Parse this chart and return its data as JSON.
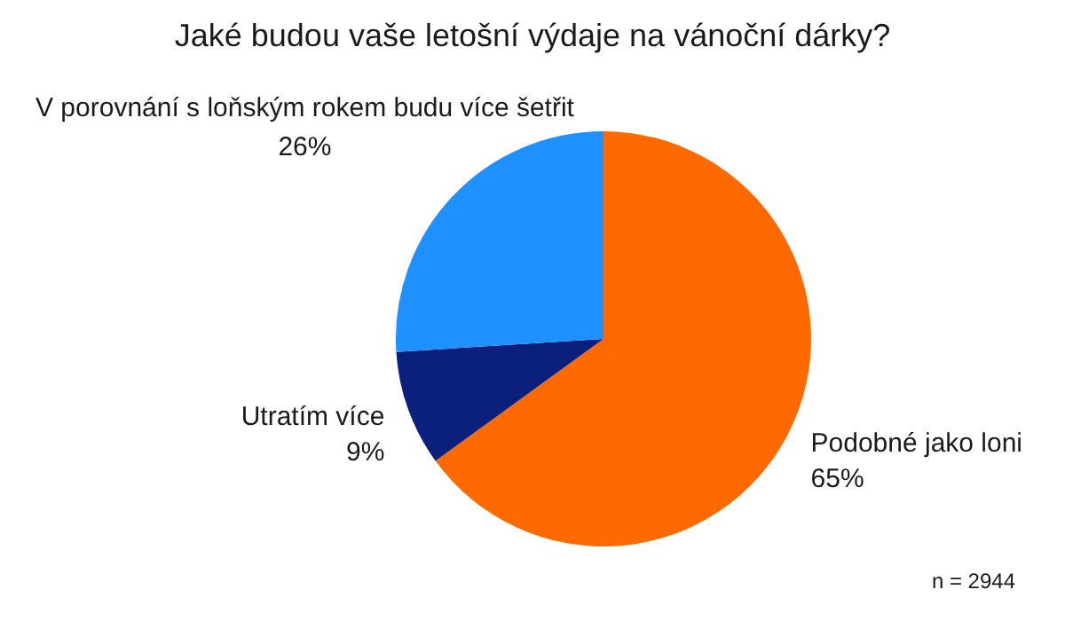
{
  "chart_data": {
    "type": "pie",
    "title": "Jaké budou vaše letošní výdaje na vánoční dárky?",
    "categories": [
      "Podobné jako loni",
      "Utratím více",
      "V porovnání s loňským rokem budu více šetřit"
    ],
    "values": [
      65,
      9,
      26
    ],
    "colors": [
      "#ff6a00",
      "#0b1f7c",
      "#1e90ff"
    ],
    "value_labels": [
      "65%",
      "9%",
      "26%"
    ],
    "legend": false,
    "annotations": [
      "n = 2944"
    ]
  }
}
